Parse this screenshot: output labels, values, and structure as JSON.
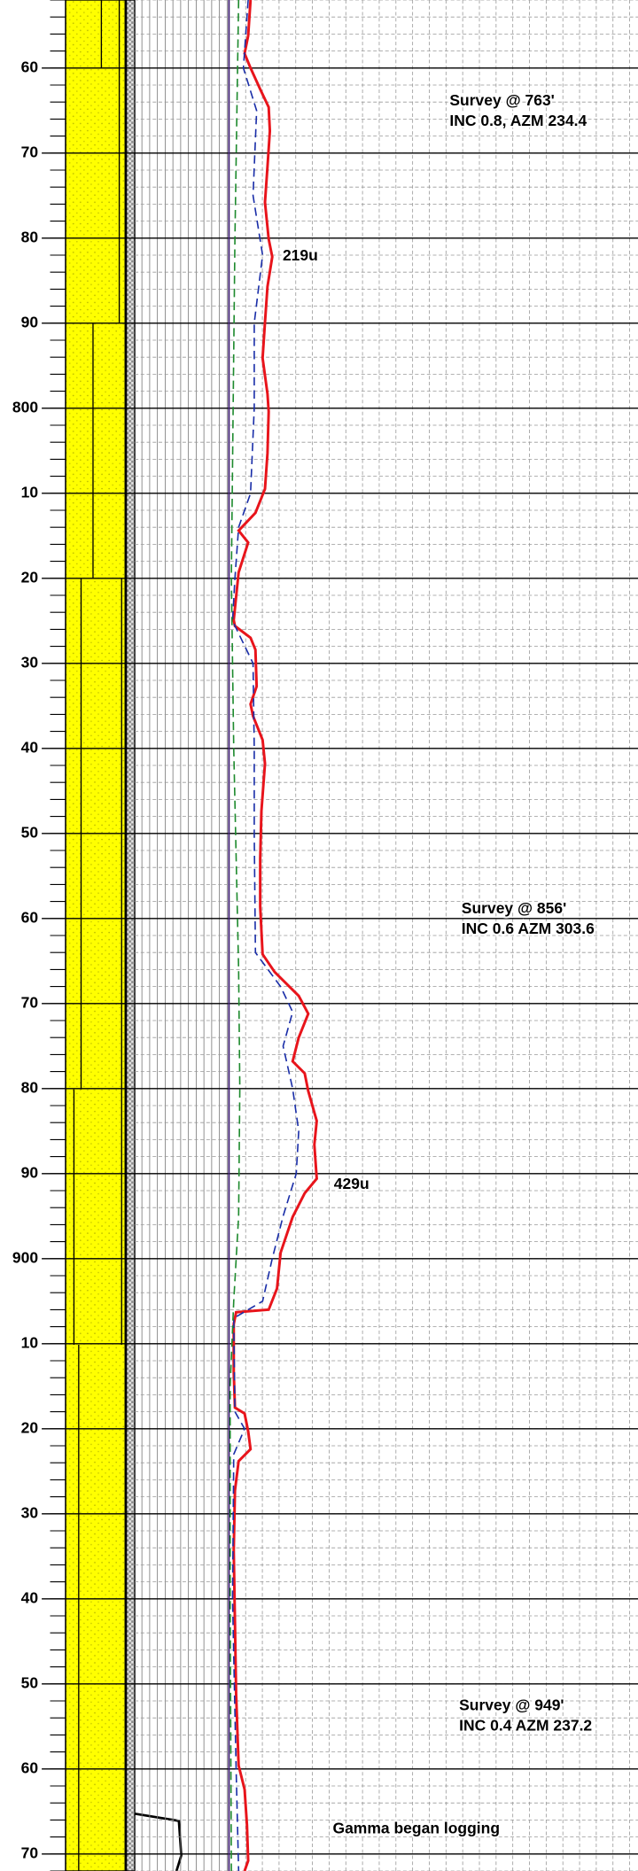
{
  "log": {
    "depth_ticks": [
      {
        "value": 760,
        "label": "60"
      },
      {
        "value": 770,
        "label": "70"
      },
      {
        "value": 780,
        "label": "80"
      },
      {
        "value": 790,
        "label": "90"
      },
      800,
      {
        "value": 810,
        "label": "10"
      },
      {
        "value": 820,
        "label": "20"
      },
      {
        "value": 830,
        "label": "30"
      },
      {
        "value": 840,
        "label": "40"
      },
      {
        "value": 850,
        "label": "50"
      },
      {
        "value": 860,
        "label": "60"
      },
      {
        "value": 870,
        "label": "70"
      },
      {
        "value": 880,
        "label": "80"
      },
      {
        "value": 890,
        "label": "90"
      },
      900,
      {
        "value": 910,
        "label": "10"
      },
      {
        "value": 920,
        "label": "20"
      },
      {
        "value": 930,
        "label": "30"
      },
      {
        "value": 940,
        "label": "40"
      },
      {
        "value": 950,
        "label": "50"
      },
      {
        "value": 960,
        "label": "60"
      },
      {
        "value": 970,
        "label": "70"
      }
    ],
    "ylim": [
      752,
      972
    ],
    "xlim": [
      0,
      2000
    ],
    "curves": [
      {
        "color": "#e8141b",
        "style": "solid",
        "depth": [
          752,
          756.2,
          758.3,
          760,
          762.5,
          764.6,
          767.4,
          771.6,
          775.8,
          780.1,
          782.2,
          785.7,
          789.9,
          794.1,
          798.3,
          800.4,
          805.3,
          809.5,
          812.3,
          814.4,
          815.8,
          819.3,
          824.9,
          825.6,
          827,
          828.4,
          832.7,
          834.8,
          836.2,
          839,
          841.8,
          847.4,
          853,
          858.6,
          864.2,
          866.3,
          869.1,
          871.2,
          874,
          876.8,
          878.2,
          880.3,
          883.8,
          886.6,
          890.6,
          892.3,
          895.1,
          899.3,
          903.5,
          906,
          906.3,
          907.7,
          913.3,
          917.5,
          918.2,
          920.3,
          922.4,
          923.8,
          927.3,
          934.3,
          942.7,
          951.2,
          959.6,
          962.4,
          966.6,
          970.8,
          972
        ],
        "values": [
          108,
          96,
          78,
          108,
          156,
          198,
          204,
          192,
          180,
          198,
          216,
          192,
          180,
          168,
          192,
          198,
          192,
          180,
          132,
          48,
          96,
          48,
          24,
          30,
          108,
          132,
          138,
          108,
          120,
          168,
          180,
          162,
          156,
          156,
          168,
          228,
          348,
          396,
          348,
          318,
          378,
          396,
          438,
          426,
          438,
          378,
          318,
          258,
          240,
          198,
          36,
          24,
          24,
          30,
          78,
          96,
          108,
          48,
          30,
          24,
          30,
          36,
          48,
          78,
          90,
          96,
          78
        ]
      },
      {
        "color": "#1a2ea8",
        "style": "dashed",
        "depth": [
          752,
          760,
          765,
          775,
          782,
          790,
          800,
          810,
          814,
          820,
          825,
          830,
          840,
          850,
          864,
          868,
          871,
          875,
          880,
          885,
          890,
          895,
          900,
          905,
          907,
          918,
          920,
          923,
          940,
          960,
          972
        ],
        "values": [
          96,
          72,
          138,
          120,
          168,
          126,
          126,
          108,
          48,
          30,
          18,
          120,
          126,
          126,
          132,
          258,
          318,
          270,
          318,
          348,
          336,
          270,
          216,
          168,
          24,
          30,
          78,
          24,
          18,
          36,
          48
        ]
      },
      {
        "color": "#1e8a2e",
        "style": "dashed",
        "depth": [
          752,
          780,
          820,
          840,
          866,
          880,
          895,
          905,
          915,
          940,
          972
        ],
        "values": [
          48,
          30,
          12,
          24,
          48,
          54,
          48,
          24,
          6,
          6,
          12
        ]
      }
    ],
    "annotations": [
      "Survey @ 763'",
      "INC 0.8, AZM 234.4",
      "219u",
      "Survey @ 856'",
      "INC 0.6  AZM 303.6",
      "429u",
      "Survey @ 949'",
      "INC 0.4 AZM 237.2",
      "Gamma began logging"
    ]
  }
}
